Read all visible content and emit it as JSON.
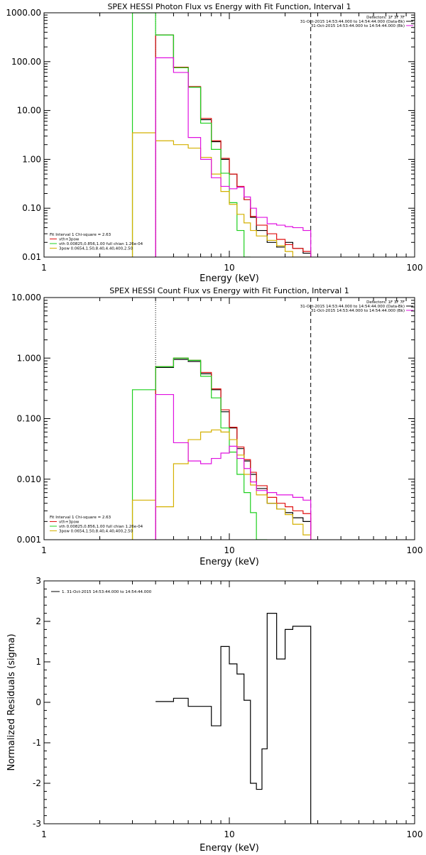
{
  "chart_data": [
    {
      "type": "line",
      "title": "SPEX HESSI Photon Flux vs Energy with Fit Function, Interval 1",
      "xlabel": "Energy (keV)",
      "ylabel": "",
      "xscale": "log",
      "yscale": "log",
      "xlim": [
        1,
        100
      ],
      "ylim": [
        0.01,
        1000
      ],
      "xticks": [
        "1",
        "10",
        "100"
      ],
      "yticks": [
        "0.01",
        "0.10",
        "1.00",
        "10.00",
        "100.00",
        "1000.00"
      ],
      "vlines": [
        {
          "x": 4.0,
          "style": "dotted"
        },
        {
          "x": 27.5,
          "style": "dashed"
        }
      ],
      "legend_top": [
        "Detectors: 1F 3F 7F",
        "31-Oct-2015 14:53:44.000 to 14:54:44.000 (Data-Bk)",
        "31-Oct-2015 14:53:44.000 to 14:54:44.000 (Bk)"
      ],
      "legend_bottom": [
        "Fit Interval 1   Chi-square = 2.63",
        "vth+3pow",
        "vth 0.00825,0.856,1.00  full chian 1.26e-04",
        "3pow 0.0654,1.50,8.40,4.40,400,2.50"
      ],
      "edges": [
        3.0,
        4.0,
        5.0,
        6.0,
        7.0,
        8.0,
        9.0,
        10.0,
        11.0,
        12.0,
        13.0,
        14.0,
        16.0,
        18.0,
        20.0,
        22.0,
        25.0,
        27.5
      ],
      "series": [
        {
          "label_ref": "data",
          "color": "#000000",
          "values": [
            null,
            350,
            75,
            30,
            6.5,
            2.3,
            1.0,
            0.5,
            0.27,
            0.15,
            0.065,
            0.035,
            0.02,
            0.016,
            0.02,
            0.015,
            0.012
          ]
        },
        {
          "label_ref": "vth+3pow",
          "color": "#e01010",
          "values": [
            null,
            350,
            77,
            31,
            6.9,
            2.4,
            1.05,
            0.5,
            0.28,
            0.15,
            0.068,
            0.045,
            0.03,
            0.023,
            0.018,
            0.015,
            0.013
          ]
        },
        {
          "label_ref": "vth",
          "color": "#1fd01f",
          "values": [
            1000,
            350,
            75,
            30,
            5.5,
            1.6,
            0.52,
            0.13,
            0.035,
            0.01,
            null,
            null,
            null,
            null,
            null,
            null,
            null
          ]
        },
        {
          "label_ref": "3pow",
          "color": "#d4b000",
          "values": [
            3.5,
            2.4,
            2.0,
            1.7,
            1.1,
            0.5,
            0.22,
            0.12,
            0.075,
            0.05,
            0.035,
            0.027,
            0.022,
            0.017,
            0.013,
            0.01,
            0.008
          ]
        },
        {
          "label_ref": "Bk",
          "color": "#e010e0",
          "values": [
            null,
            120,
            60,
            2.8,
            1.0,
            0.42,
            0.28,
            0.25,
            0.27,
            0.17,
            0.1,
            0.065,
            0.048,
            0.045,
            0.042,
            0.04,
            0.035
          ]
        }
      ]
    },
    {
      "type": "line",
      "title": "SPEX HESSI Count Flux vs Energy with Fit Function, Interval 1",
      "xlabel": "Energy (keV)",
      "ylabel": "",
      "xscale": "log",
      "yscale": "log",
      "xlim": [
        1,
        100
      ],
      "ylim": [
        0.001,
        10
      ],
      "xticks": [
        "1",
        "10",
        "100"
      ],
      "yticks": [
        "0.001",
        "0.010",
        "0.100",
        "1.000",
        "10.000"
      ],
      "vlines": [
        {
          "x": 4.0,
          "style": "dotted"
        },
        {
          "x": 27.5,
          "style": "dashed"
        }
      ],
      "legend_top": [
        "Detectors: 1F 3F 7F",
        "31-Oct-2015 14:53:44.000 to 14:54:44.000 (Data-Bk)",
        "31-Oct-2015 14:53:44.000 to 14:54:44.000 (Bk)"
      ],
      "legend_bottom": [
        "Fit Interval 1   Chi-square = 2.63",
        "vth+3pow",
        "vth 0.00825,0.856,1.00  full chian 1.26e-04",
        "3pow 0.0654,1.50,8.40,4.40,400,2.50"
      ],
      "edges": [
        3.0,
        4.0,
        5.0,
        6.0,
        7.0,
        8.0,
        9.0,
        10.0,
        11.0,
        12.0,
        13.0,
        14.0,
        16.0,
        18.0,
        20.0,
        22.0,
        25.0,
        27.5
      ],
      "series": [
        {
          "label_ref": "data",
          "color": "#000000",
          "values": [
            null,
            0.7,
            0.95,
            0.88,
            0.55,
            0.3,
            0.13,
            0.07,
            0.032,
            0.02,
            0.012,
            0.007,
            0.004,
            0.0032,
            0.0028,
            0.0023,
            0.002
          ]
        },
        {
          "label_ref": "vth+3pow",
          "color": "#e01010",
          "values": [
            null,
            0.72,
            1.0,
            0.92,
            0.58,
            0.31,
            0.14,
            0.072,
            0.034,
            0.021,
            0.013,
            0.0078,
            0.005,
            0.004,
            0.0035,
            0.003,
            0.0027
          ]
        },
        {
          "label_ref": "vth",
          "color": "#1fd01f",
          "values": [
            0.3,
            0.72,
            1.0,
            0.92,
            0.5,
            0.22,
            0.07,
            0.028,
            0.012,
            0.006,
            0.0028,
            0.001,
            null,
            null,
            null,
            null,
            null
          ]
        },
        {
          "label_ref": "3pow",
          "color": "#d4b000",
          "values": [
            0.0045,
            0.0035,
            0.018,
            0.045,
            0.06,
            0.065,
            0.06,
            0.045,
            0.025,
            0.012,
            0.008,
            0.0055,
            0.004,
            0.0032,
            0.0026,
            0.0018,
            0.0012
          ]
        },
        {
          "label_ref": "Bk",
          "color": "#e010e0",
          "values": [
            null,
            0.25,
            0.04,
            0.02,
            0.018,
            0.022,
            0.027,
            0.035,
            0.022,
            0.015,
            0.009,
            0.0065,
            0.006,
            0.0055,
            0.0055,
            0.005,
            0.0045
          ]
        }
      ]
    },
    {
      "type": "line",
      "title": "",
      "xlabel": "Energy (keV)",
      "ylabel": "Normalized Residuals (sigma)",
      "xscale": "log",
      "yscale": "linear",
      "xlim": [
        1,
        100
      ],
      "ylim": [
        -3,
        3
      ],
      "xticks": [
        "1",
        "10",
        "100"
      ],
      "yticks": [
        "-3",
        "-2",
        "-1",
        "0",
        "1",
        "2",
        "3"
      ],
      "legend": [
        "1. 31-Oct-2015 14:53:44.000 to 14:54:44.000"
      ],
      "edges": [
        4.0,
        5.0,
        6.0,
        8.0,
        9.0,
        10.0,
        11.0,
        12.0,
        13.0,
        14.0,
        15.0,
        16.0,
        18.0,
        20.0,
        22.0,
        25.0,
        27.5
      ],
      "series": [
        {
          "label_ref": "residuals",
          "color": "#000000",
          "values": [
            0.02,
            0.1,
            -0.1,
            -0.58,
            1.38,
            0.95,
            0.7,
            0.05,
            -2.0,
            -2.15,
            -1.15,
            2.2,
            1.07,
            1.8,
            1.88,
            1.88
          ]
        }
      ]
    }
  ]
}
